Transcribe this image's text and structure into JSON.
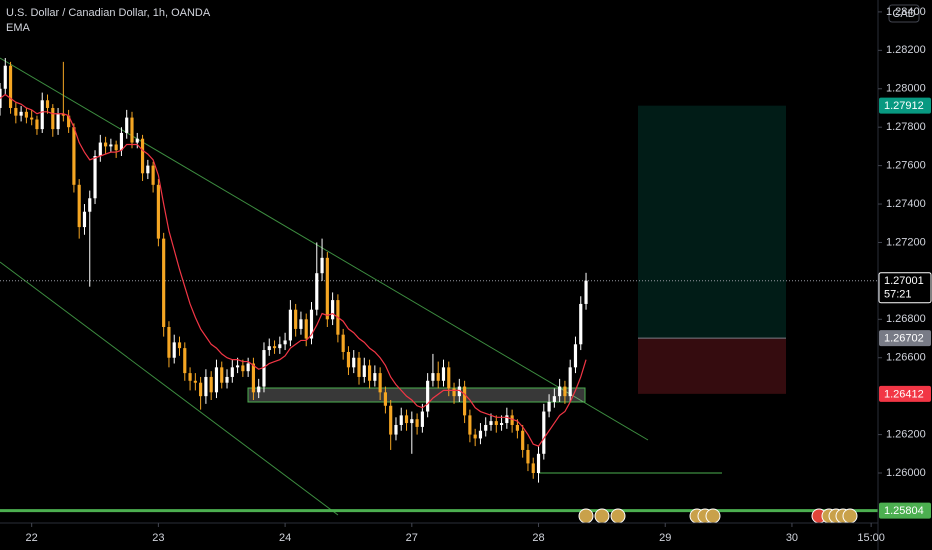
{
  "chart_data": {
    "type": "candlestick",
    "title": "U.S. Dollar / Canadian Dollar, 1h, OANDA",
    "indicator": "EMA",
    "currency": "CAD",
    "up_color": "#ffffff",
    "down_color": "#f5a623",
    "ema_color": "#f23645",
    "xlim": [
      0,
      166.3
    ],
    "xticks": [
      {
        "value": 6,
        "label": "22"
      },
      {
        "value": 30,
        "label": "23"
      },
      {
        "value": 54,
        "label": "24"
      },
      {
        "value": 78,
        "label": "27"
      },
      {
        "value": 102,
        "label": "28"
      },
      {
        "value": 126,
        "label": "29"
      },
      {
        "value": 150,
        "label": "30"
      },
      {
        "value": 165,
        "label": "15:00"
      }
    ],
    "ylim": [
      1.25745,
      1.28462
    ],
    "yticks": [
      {
        "value": 1.284,
        "label": "1.28400"
      },
      {
        "value": 1.282,
        "label": "1.28200"
      },
      {
        "value": 1.28,
        "label": "1.28000"
      },
      {
        "value": 1.278,
        "label": "1.27800"
      },
      {
        "value": 1.276,
        "label": "1.27600"
      },
      {
        "value": 1.274,
        "label": "1.27400"
      },
      {
        "value": 1.272,
        "label": "1.27200"
      },
      {
        "value": 1.268,
        "label": "1.26800"
      },
      {
        "value": 1.266,
        "label": "1.26600"
      },
      {
        "value": 1.262,
        "label": "1.26200"
      },
      {
        "value": 1.26,
        "label": "1.26000"
      }
    ],
    "grid": false,
    "candles": [
      [
        1.279,
        1.2803,
        1.2786,
        1.28
      ],
      [
        1.28,
        1.2816,
        1.2797,
        1.2812
      ],
      [
        1.2812,
        1.2814,
        1.2787,
        1.279
      ],
      [
        1.279,
        1.2793,
        1.2782,
        1.2786
      ],
      [
        1.2786,
        1.2791,
        1.2783,
        1.2788
      ],
      [
        1.2788,
        1.279,
        1.2782,
        1.2785
      ],
      [
        1.2785,
        1.2789,
        1.2781,
        1.2784
      ],
      [
        1.2784,
        1.2786,
        1.2776,
        1.2779
      ],
      [
        1.2779,
        1.2798,
        1.2777,
        1.2794
      ],
      [
        1.2794,
        1.2797,
        1.2787,
        1.279
      ],
      [
        1.279,
        1.2792,
        1.2775,
        1.2779
      ],
      [
        1.2779,
        1.279,
        1.2776,
        1.2787
      ],
      [
        1.2787,
        1.2814,
        1.2783,
        1.2786
      ],
      [
        1.2786,
        1.2789,
        1.2777,
        1.278
      ],
      [
        1.278,
        1.2782,
        1.2746,
        1.275
      ],
      [
        1.275,
        1.2753,
        1.2722,
        1.2728
      ],
      [
        1.2728,
        1.274,
        1.2724,
        1.2736
      ],
      [
        1.2736,
        1.2747,
        1.2697,
        1.2743
      ],
      [
        1.2743,
        1.2768,
        1.274,
        1.2765
      ],
      [
        1.2765,
        1.2776,
        1.2762,
        1.2772
      ],
      [
        1.2772,
        1.2775,
        1.2766,
        1.277
      ],
      [
        1.277,
        1.2774,
        1.2767,
        1.2771
      ],
      [
        1.2771,
        1.2773,
        1.2764,
        1.2768
      ],
      [
        1.2768,
        1.278,
        1.2765,
        1.2777
      ],
      [
        1.2777,
        1.2789,
        1.2774,
        1.2785
      ],
      [
        1.2785,
        1.2788,
        1.2769,
        1.2772
      ],
      [
        1.2772,
        1.2777,
        1.2769,
        1.2774
      ],
      [
        1.2774,
        1.2776,
        1.2752,
        1.2756
      ],
      [
        1.2756,
        1.2763,
        1.2753,
        1.276
      ],
      [
        1.276,
        1.2762,
        1.2746,
        1.275
      ],
      [
        1.275,
        1.2753,
        1.2718,
        1.2722
      ],
      [
        1.2722,
        1.2725,
        1.2671,
        1.2676
      ],
      [
        1.2676,
        1.2679,
        1.2655,
        1.266
      ],
      [
        1.266,
        1.2672,
        1.2657,
        1.2668
      ],
      [
        1.2668,
        1.2671,
        1.2661,
        1.2665
      ],
      [
        1.2665,
        1.2668,
        1.2648,
        1.2652
      ],
      [
        1.2652,
        1.2655,
        1.2643,
        1.2648
      ],
      [
        1.2648,
        1.2652,
        1.2643,
        1.2647
      ],
      [
        1.2647,
        1.265,
        1.2633,
        1.264
      ],
      [
        1.264,
        1.2654,
        1.2636,
        1.265
      ],
      [
        1.265,
        1.2653,
        1.2638,
        1.2642
      ],
      [
        1.2642,
        1.2659,
        1.2639,
        1.2655
      ],
      [
        1.2655,
        1.2658,
        1.2644,
        1.2647
      ],
      [
        1.2647,
        1.2654,
        1.2644,
        1.265
      ],
      [
        1.265,
        1.2659,
        1.2647,
        1.2655
      ],
      [
        1.2655,
        1.266,
        1.2652,
        1.2656
      ],
      [
        1.2656,
        1.2659,
        1.265,
        1.2653
      ],
      [
        1.2653,
        1.266,
        1.265,
        1.2657
      ],
      [
        1.2657,
        1.266,
        1.2638,
        1.2642
      ],
      [
        1.2642,
        1.2649,
        1.2639,
        1.2645
      ],
      [
        1.2645,
        1.2668,
        1.2642,
        1.2664
      ],
      [
        1.2664,
        1.267,
        1.2661,
        1.2666
      ],
      [
        1.2666,
        1.2669,
        1.2662,
        1.2665
      ],
      [
        1.2665,
        1.2671,
        1.2662,
        1.2667
      ],
      [
        1.2667,
        1.2673,
        1.2664,
        1.2669
      ],
      [
        1.2669,
        1.269,
        1.2666,
        1.2685
      ],
      [
        1.2685,
        1.2688,
        1.2671,
        1.2675
      ],
      [
        1.2675,
        1.2684,
        1.2672,
        1.268
      ],
      [
        1.268,
        1.2683,
        1.2666,
        1.267
      ],
      [
        1.267,
        1.2689,
        1.2667,
        1.2685
      ],
      [
        1.2685,
        1.272,
        1.2682,
        1.2704
      ],
      [
        1.2704,
        1.2722,
        1.27,
        1.2712
      ],
      [
        1.2712,
        1.2715,
        1.2676,
        1.268
      ],
      [
        1.268,
        1.2694,
        1.2677,
        1.269
      ],
      [
        1.269,
        1.2693,
        1.2668,
        1.2672
      ],
      [
        1.2672,
        1.2675,
        1.2659,
        1.2663
      ],
      [
        1.2663,
        1.2666,
        1.2651,
        1.2655
      ],
      [
        1.2655,
        1.2664,
        1.2652,
        1.266
      ],
      [
        1.266,
        1.2663,
        1.2646,
        1.265
      ],
      [
        1.265,
        1.266,
        1.2647,
        1.2656
      ],
      [
        1.2656,
        1.2659,
        1.2644,
        1.2648
      ],
      [
        1.2648,
        1.2656,
        1.2645,
        1.2652
      ],
      [
        1.2652,
        1.2655,
        1.2638,
        1.2642
      ],
      [
        1.2642,
        1.2645,
        1.2631,
        1.2635
      ],
      [
        1.2635,
        1.2638,
        1.2612,
        1.262
      ],
      [
        1.262,
        1.2629,
        1.2617,
        1.2625
      ],
      [
        1.2625,
        1.2634,
        1.2622,
        1.263
      ],
      [
        1.263,
        1.2633,
        1.2622,
        1.2626
      ],
      [
        1.2626,
        1.2632,
        1.261,
        1.2628
      ],
      [
        1.2628,
        1.2631,
        1.262,
        1.2624
      ],
      [
        1.2624,
        1.2636,
        1.2621,
        1.2632
      ],
      [
        1.2632,
        1.2652,
        1.2629,
        1.2648
      ],
      [
        1.2648,
        1.2662,
        1.2645,
        1.2652
      ],
      [
        1.2652,
        1.2658,
        1.2644,
        1.2648
      ],
      [
        1.2648,
        1.2659,
        1.2645,
        1.2655
      ],
      [
        1.2655,
        1.2658,
        1.264,
        1.2644
      ],
      [
        1.2644,
        1.2647,
        1.2636,
        1.264
      ],
      [
        1.264,
        1.2649,
        1.2637,
        1.2645
      ],
      [
        1.2645,
        1.2648,
        1.2626,
        1.263
      ],
      [
        1.263,
        1.2633,
        1.2616,
        1.262
      ],
      [
        1.262,
        1.2623,
        1.2614,
        1.2618
      ],
      [
        1.2618,
        1.2626,
        1.2615,
        1.2622
      ],
      [
        1.2622,
        1.2629,
        1.2619,
        1.2625
      ],
      [
        1.2625,
        1.2631,
        1.2622,
        1.2627
      ],
      [
        1.2627,
        1.263,
        1.2621,
        1.2625
      ],
      [
        1.2625,
        1.263,
        1.2622,
        1.2626
      ],
      [
        1.2626,
        1.2634,
        1.2623,
        1.263
      ],
      [
        1.263,
        1.2633,
        1.2621,
        1.2625
      ],
      [
        1.2625,
        1.2628,
        1.2618,
        1.2622
      ],
      [
        1.2622,
        1.2625,
        1.2608,
        1.2612
      ],
      [
        1.2612,
        1.2615,
        1.2601,
        1.2605
      ],
      [
        1.2605,
        1.2608,
        1.2597,
        1.26
      ],
      [
        1.26,
        1.2614,
        1.2595,
        1.261
      ],
      [
        1.261,
        1.2636,
        1.2607,
        1.2632
      ],
      [
        1.2632,
        1.2641,
        1.2629,
        1.2637
      ],
      [
        1.2637,
        1.2644,
        1.2634,
        1.264
      ],
      [
        1.264,
        1.2649,
        1.2637,
        1.2645
      ],
      [
        1.2645,
        1.2648,
        1.2636,
        1.264
      ],
      [
        1.264,
        1.2659,
        1.2637,
        1.2655
      ],
      [
        1.2655,
        1.2671,
        1.2652,
        1.2667
      ],
      [
        1.2667,
        1.2692,
        1.2664,
        1.2688
      ],
      [
        1.2688,
        1.27042,
        1.2685,
        1.27001
      ]
    ],
    "ema": [
      1.2795,
      1.2797,
      1.2795,
      1.2793,
      1.2792,
      1.279,
      1.2789,
      1.2787,
      1.2788,
      1.2788,
      1.2787,
      1.2787,
      1.2787,
      1.2786,
      1.278,
      1.2772,
      1.2767,
      1.2763,
      1.2764,
      1.2765,
      1.2766,
      1.2767,
      1.2767,
      1.2768,
      1.2771,
      1.2771,
      1.2771,
      1.2768,
      1.2766,
      1.2763,
      1.2755,
      1.274,
      1.2726,
      1.2716,
      1.2706,
      1.2697,
      1.2688,
      1.2681,
      1.2675,
      1.2671,
      1.2667,
      1.2665,
      1.2662,
      1.266,
      1.2659,
      1.2659,
      1.2658,
      1.2658,
      1.2656,
      1.2654,
      1.2655,
      1.2657,
      1.2658,
      1.2659,
      1.2661,
      1.2665,
      1.2667,
      1.2669,
      1.2669,
      1.2672,
      1.2677,
      1.2683,
      1.2682,
      1.2683,
      1.2681,
      1.2679,
      1.2675,
      1.2673,
      1.267,
      1.2668,
      1.2665,
      1.2663,
      1.266,
      1.2656,
      1.265,
      1.2646,
      1.2643,
      1.264,
      1.2638,
      1.2635,
      1.2634,
      1.2636,
      1.2639,
      1.2641,
      1.2643,
      1.2643,
      1.2643,
      1.2643,
      1.2641,
      1.2638,
      1.2634,
      1.2632,
      1.2631,
      1.263,
      1.2629,
      1.2629,
      1.2629,
      1.2628,
      1.2627,
      1.2624,
      1.262,
      1.2615,
      1.2614,
      1.2618,
      1.2622,
      1.2626,
      1.263,
      1.2632,
      1.2637,
      1.2643,
      1.265,
      1.2659
    ],
    "current_price": 1.27001,
    "countdown": "57:21",
    "target": 1.27912,
    "entry": 1.26702,
    "stop": 1.26412,
    "level": 1.25804,
    "target_color": "#089981",
    "entry_color": "#787b86",
    "stop_color": "#f23645",
    "level_color": "#4caf50"
  }
}
